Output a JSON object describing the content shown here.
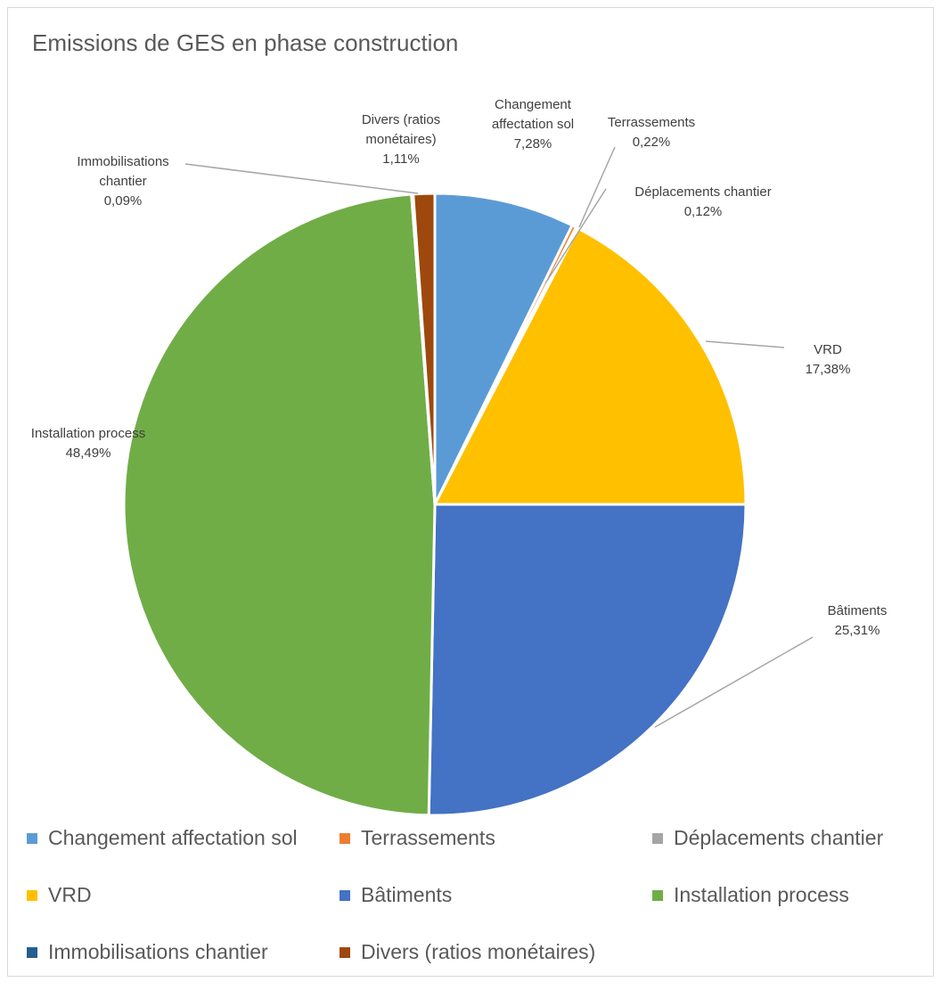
{
  "chart_data": {
    "type": "pie",
    "title": "Emissions de GES en phase construction",
    "slices": [
      {
        "name": "Changement affectation sol",
        "value": 7.28,
        "label_lines": [
          "Changement",
          "affectation sol",
          "7,28%"
        ],
        "color": "#5B9BD5"
      },
      {
        "name": "Terrassements",
        "value": 0.22,
        "label_lines": [
          "Terrassements",
          "0,22%"
        ],
        "color": "#ED7D31"
      },
      {
        "name": "Déplacements chantier",
        "value": 0.12,
        "label_lines": [
          "Déplacements chantier",
          "0,12%"
        ],
        "color": "#A5A5A5"
      },
      {
        "name": "VRD",
        "value": 17.38,
        "label_lines": [
          "VRD",
          "17,38%"
        ],
        "color": "#FFC000"
      },
      {
        "name": "Bâtiments",
        "value": 25.31,
        "label_lines": [
          "Bâtiments",
          "25,31%"
        ],
        "color": "#4472C4"
      },
      {
        "name": "Installation process",
        "value": 48.49,
        "label_lines": [
          "Installation process",
          "48,49%"
        ],
        "color": "#70AD47"
      },
      {
        "name": "Immobilisations chantier",
        "value": 0.09,
        "label_lines": [
          "Immobilisations",
          "chantier",
          "0,09%"
        ],
        "color": "#255E91"
      },
      {
        "name": "Divers (ratios monétaires)",
        "value": 1.11,
        "label_lines": [
          "Divers (ratios",
          "monétaires)",
          "1,11%"
        ],
        "color": "#9E480E"
      }
    ],
    "legend": {
      "position": "bottom",
      "items": [
        "Changement affectation sol",
        "Terrassements",
        "Déplacements chantier",
        "VRD",
        "Bâtiments",
        "Installation process",
        "Immobilisations chantier",
        "Divers (ratios monétaires)"
      ]
    }
  }
}
